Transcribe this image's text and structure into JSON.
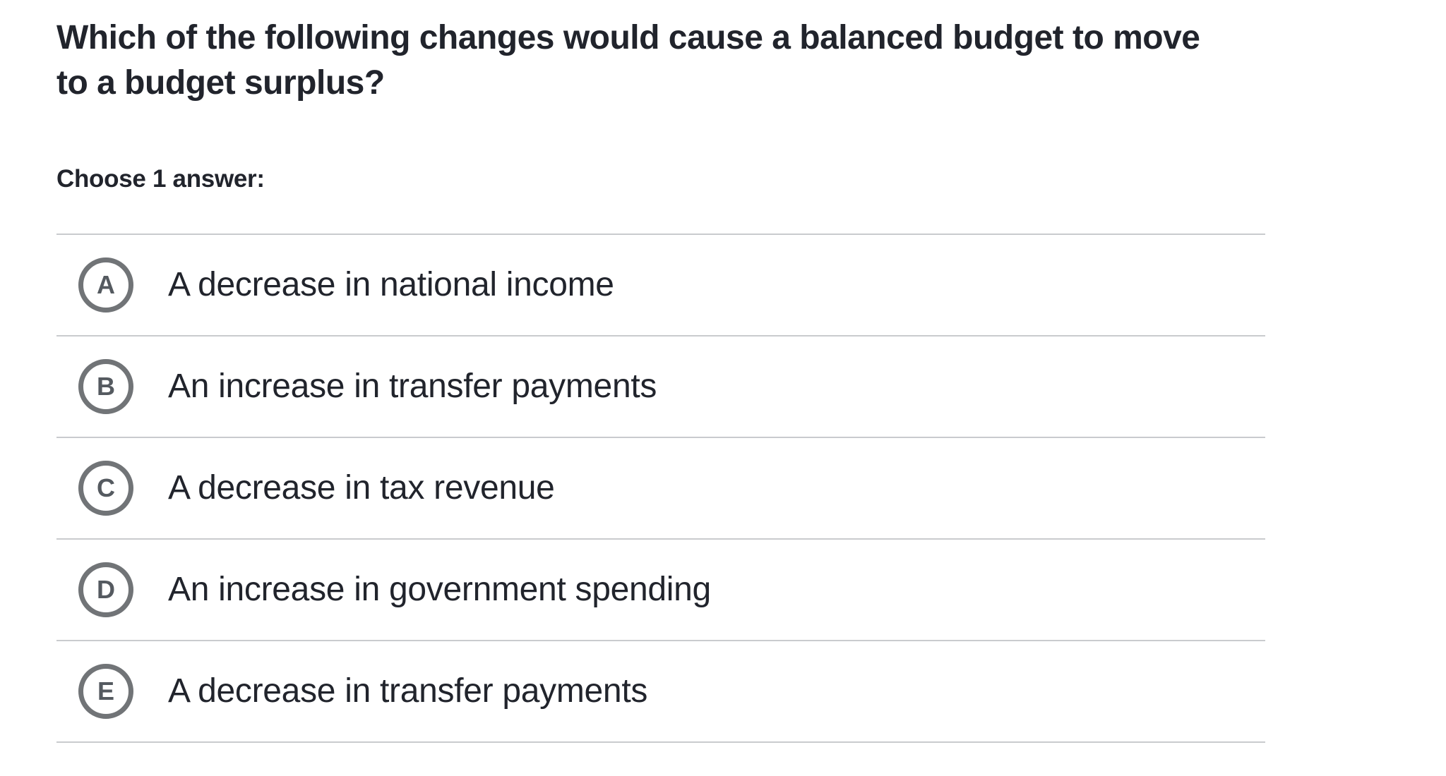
{
  "question": {
    "title_line1": "Which of the following changes would cause a balanced budget to move",
    "title_line2": "to a budget surplus?",
    "title_full": "Which of the following changes would cause a balanced budget to move to a budget surplus?",
    "prompt": "Choose 1 answer:"
  },
  "options": [
    {
      "letter": "A",
      "text": "A decrease in national income"
    },
    {
      "letter": "B",
      "text": "An increase in transfer payments"
    },
    {
      "letter": "C",
      "text": "A decrease in tax revenue"
    },
    {
      "letter": "D",
      "text": "An increase in government spending"
    },
    {
      "letter": "E",
      "text": "A decrease in transfer payments"
    }
  ],
  "colors": {
    "text_primary": "#21242c",
    "badge_ring": "#717477",
    "badge_letter": "#555a60",
    "divider": "#c9cbce",
    "background": "#ffffff"
  }
}
